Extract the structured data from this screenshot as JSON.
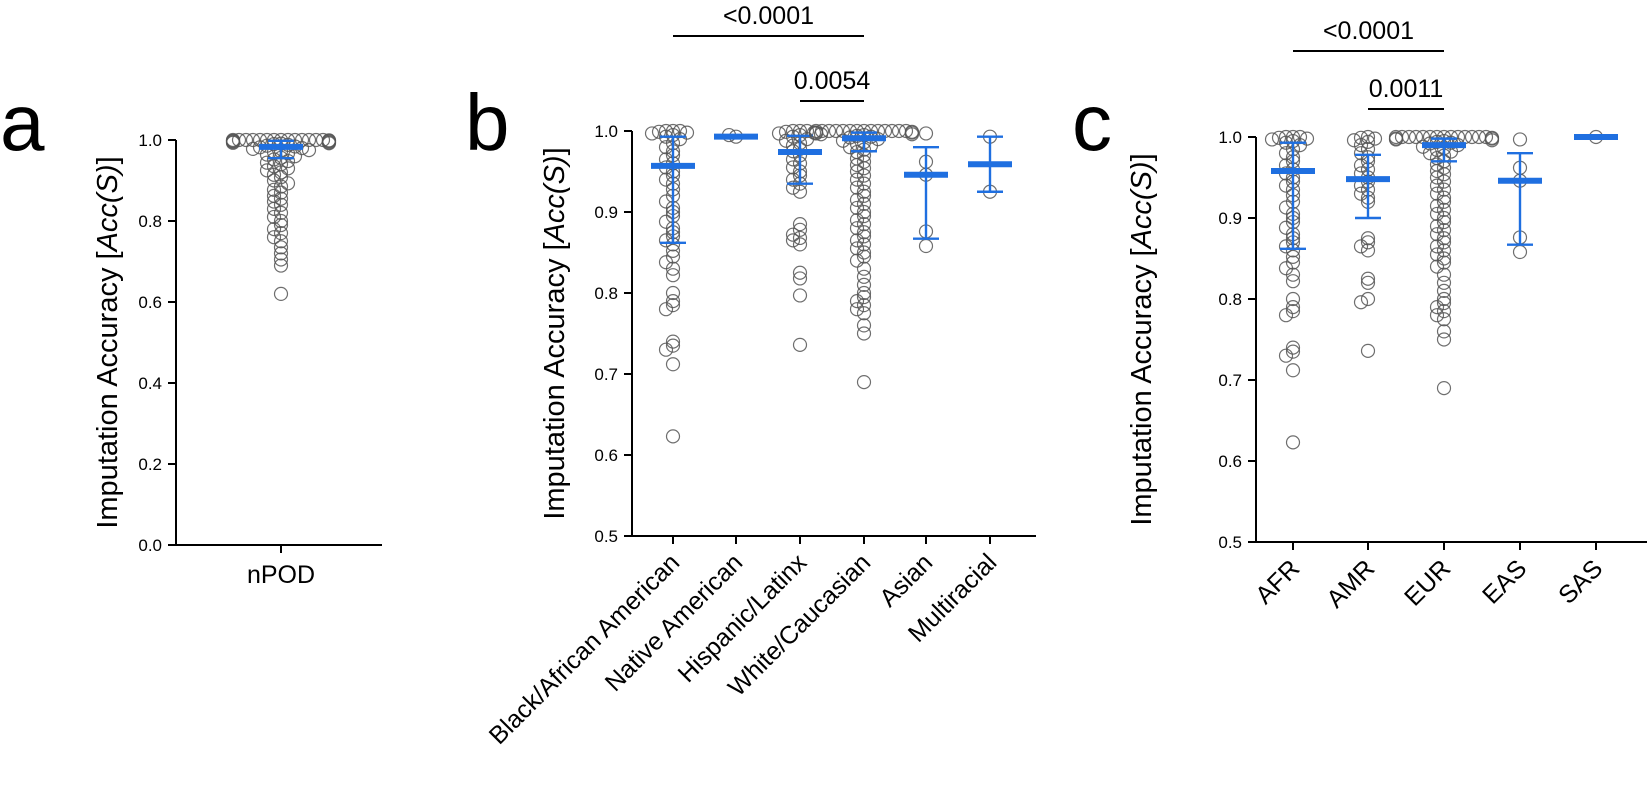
{
  "colors": {
    "mean_sd": "#1f6fe0",
    "points": "#555555",
    "axis": "#000000"
  },
  "chart_data": [
    {
      "panel": "a",
      "type": "scatter",
      "subtype": "dot-plot-mean-sd",
      "ylabel_prefix": "Imputation Accuracy [",
      "ylabel_italic": "Acc(S)",
      "ylabel_suffix": "]",
      "ylim": [
        0.0,
        1.0
      ],
      "yticks": [
        "0.0",
        "0.2",
        "0.4",
        "0.6",
        "0.8",
        "1.0"
      ],
      "categories": [
        "nPOD"
      ],
      "groups": [
        {
          "name": "nPOD",
          "mean": 0.983,
          "sd_low": 0.955,
          "sd_high": 0.998,
          "points": [
            1.0,
            1.0,
            1.0,
            1.0,
            1.0,
            1.0,
            1.0,
            1.0,
            1.0,
            1.0,
            1.0,
            1.0,
            1.0,
            1.0,
            0.999,
            0.998,
            0.998,
            0.997,
            0.996,
            0.995,
            0.994,
            0.993,
            0.992,
            0.991,
            0.99,
            0.988,
            0.986,
            0.984,
            0.982,
            0.98,
            0.978,
            0.975,
            0.972,
            0.97,
            0.967,
            0.964,
            0.96,
            0.956,
            0.952,
            0.948,
            0.944,
            0.94,
            0.935,
            0.93,
            0.925,
            0.92,
            0.914,
            0.908,
            0.9,
            0.893,
            0.885,
            0.877,
            0.87,
            0.862,
            0.855,
            0.848,
            0.84,
            0.83,
            0.82,
            0.81,
            0.8,
            0.79,
            0.78,
            0.77,
            0.76,
            0.75,
            0.735,
            0.72,
            0.705,
            0.69,
            0.62
          ]
        }
      ],
      "significance": []
    },
    {
      "panel": "b",
      "type": "scatter",
      "subtype": "dot-plot-mean-sd",
      "ylabel_prefix": "Imputation Accuracy [",
      "ylabel_italic": "Acc(S)",
      "ylabel_suffix": "]",
      "ylim": [
        0.5,
        1.0
      ],
      "yticks": [
        "0.5",
        "0.6",
        "0.7",
        "0.8",
        "0.9",
        "1.0"
      ],
      "categories": [
        "Black/African American",
        "Native American",
        "Hispanic/Latinx",
        "White/Caucasian",
        "Asian",
        "Multiracial"
      ],
      "groups": [
        {
          "name": "Black/African American",
          "mean": 0.957,
          "sd_low": 0.862,
          "sd_high": 0.993,
          "points": [
            1.0,
            1.0,
            1.0,
            0.999,
            0.998,
            0.997,
            0.995,
            0.993,
            0.99,
            0.985,
            0.98,
            0.975,
            0.97,
            0.965,
            0.96,
            0.955,
            0.95,
            0.945,
            0.94,
            0.935,
            0.928,
            0.92,
            0.913,
            0.905,
            0.9,
            0.895,
            0.888,
            0.88,
            0.875,
            0.87,
            0.865,
            0.86,
            0.852,
            0.845,
            0.838,
            0.83,
            0.822,
            0.8,
            0.79,
            0.785,
            0.78,
            0.74,
            0.735,
            0.73,
            0.712,
            0.623
          ]
        },
        {
          "name": "Native American",
          "mean": 0.993,
          "sd_low": null,
          "sd_high": null,
          "points": [
            0.993,
            0.995
          ]
        },
        {
          "name": "Hispanic/Latinx",
          "mean": 0.974,
          "sd_low": 0.935,
          "sd_high": 0.994,
          "points": [
            1.0,
            1.0,
            1.0,
            0.999,
            0.998,
            0.997,
            0.996,
            0.995,
            0.993,
            0.99,
            0.988,
            0.985,
            0.982,
            0.978,
            0.975,
            0.97,
            0.965,
            0.96,
            0.955,
            0.95,
            0.945,
            0.94,
            0.935,
            0.93,
            0.925,
            0.885,
            0.878,
            0.872,
            0.868,
            0.865,
            0.86,
            0.825,
            0.818,
            0.797,
            0.736
          ]
        },
        {
          "name": "White/Caucasian",
          "mean": 0.991,
          "sd_low": 0.975,
          "sd_high": 0.998,
          "points": [
            1.0,
            1.0,
            1.0,
            1.0,
            1.0,
            1.0,
            1.0,
            1.0,
            1.0,
            1.0,
            1.0,
            1.0,
            1.0,
            1.0,
            0.999,
            0.998,
            0.998,
            0.997,
            0.996,
            0.995,
            0.994,
            0.993,
            0.992,
            0.99,
            0.988,
            0.986,
            0.984,
            0.982,
            0.98,
            0.977,
            0.974,
            0.97,
            0.966,
            0.962,
            0.958,
            0.954,
            0.95,
            0.945,
            0.94,
            0.935,
            0.93,
            0.925,
            0.92,
            0.915,
            0.91,
            0.905,
            0.9,
            0.895,
            0.89,
            0.885,
            0.88,
            0.875,
            0.87,
            0.865,
            0.86,
            0.855,
            0.85,
            0.845,
            0.84,
            0.83,
            0.82,
            0.81,
            0.8,
            0.795,
            0.79,
            0.785,
            0.78,
            0.775,
            0.76,
            0.75,
            0.69
          ]
        },
        {
          "name": "Asian",
          "mean": 0.946,
          "sd_low": 0.867,
          "sd_high": 0.98,
          "points": [
            0.997,
            0.962,
            0.946,
            0.876,
            0.858
          ]
        },
        {
          "name": "Multiracial",
          "mean": 0.959,
          "sd_low": 0.925,
          "sd_high": 0.993,
          "points": [
            0.993,
            0.925
          ]
        }
      ],
      "significance": [
        {
          "from": 0,
          "to": 3,
          "label": "<0.0001"
        },
        {
          "from": 2,
          "to": 3,
          "label": "0.0054"
        }
      ]
    },
    {
      "panel": "c",
      "type": "scatter",
      "subtype": "dot-plot-mean-sd",
      "ylabel_prefix": "Imputation Accuracy [",
      "ylabel_italic": "Acc(S)",
      "ylabel_suffix": "]",
      "ylim": [
        0.5,
        1.0
      ],
      "yticks": [
        "0.5",
        "0.6",
        "0.7",
        "0.8",
        "0.9",
        "1.0"
      ],
      "categories": [
        "AFR",
        "AMR",
        "EUR",
        "EAS",
        "SAS"
      ],
      "groups": [
        {
          "name": "AFR",
          "mean": 0.958,
          "sd_low": 0.862,
          "sd_high": 0.993,
          "points": [
            1.0,
            1.0,
            1.0,
            0.999,
            0.998,
            0.997,
            0.995,
            0.993,
            0.99,
            0.985,
            0.98,
            0.975,
            0.97,
            0.965,
            0.96,
            0.955,
            0.95,
            0.945,
            0.94,
            0.935,
            0.928,
            0.92,
            0.913,
            0.905,
            0.9,
            0.895,
            0.888,
            0.88,
            0.875,
            0.87,
            0.865,
            0.86,
            0.852,
            0.845,
            0.838,
            0.83,
            0.822,
            0.8,
            0.79,
            0.785,
            0.78,
            0.74,
            0.735,
            0.73,
            0.712,
            0.623
          ]
        },
        {
          "name": "AMR",
          "mean": 0.948,
          "sd_low": 0.9,
          "sd_high": 0.978,
          "points": [
            1.0,
            0.999,
            0.998,
            0.996,
            0.994,
            0.99,
            0.985,
            0.98,
            0.975,
            0.97,
            0.965,
            0.96,
            0.955,
            0.95,
            0.945,
            0.94,
            0.935,
            0.93,
            0.925,
            0.92,
            0.875,
            0.87,
            0.865,
            0.86,
            0.825,
            0.82,
            0.8,
            0.796,
            0.736
          ]
        },
        {
          "name": "EUR",
          "mean": 0.99,
          "sd_low": 0.97,
          "sd_high": 0.998,
          "points": [
            1.0,
            1.0,
            1.0,
            1.0,
            1.0,
            1.0,
            1.0,
            1.0,
            1.0,
            1.0,
            1.0,
            1.0,
            1.0,
            1.0,
            0.999,
            0.998,
            0.998,
            0.997,
            0.996,
            0.995,
            0.994,
            0.993,
            0.992,
            0.99,
            0.988,
            0.986,
            0.984,
            0.982,
            0.98,
            0.977,
            0.974,
            0.97,
            0.966,
            0.962,
            0.958,
            0.954,
            0.95,
            0.945,
            0.94,
            0.935,
            0.93,
            0.925,
            0.92,
            0.915,
            0.91,
            0.905,
            0.9,
            0.895,
            0.89,
            0.885,
            0.88,
            0.875,
            0.87,
            0.865,
            0.86,
            0.855,
            0.85,
            0.845,
            0.84,
            0.83,
            0.82,
            0.81,
            0.8,
            0.795,
            0.79,
            0.785,
            0.78,
            0.775,
            0.76,
            0.75,
            0.69
          ]
        },
        {
          "name": "EAS",
          "mean": 0.946,
          "sd_low": 0.867,
          "sd_high": 0.98,
          "points": [
            0.997,
            0.962,
            0.946,
            0.876,
            0.858
          ]
        },
        {
          "name": "SAS",
          "mean": 1.0,
          "sd_low": null,
          "sd_high": null,
          "points": [
            1.0
          ]
        }
      ],
      "significance": [
        {
          "from": 0,
          "to": 2,
          "label": "<0.0001"
        },
        {
          "from": 1,
          "to": 2,
          "label": "0.0011"
        }
      ]
    }
  ]
}
